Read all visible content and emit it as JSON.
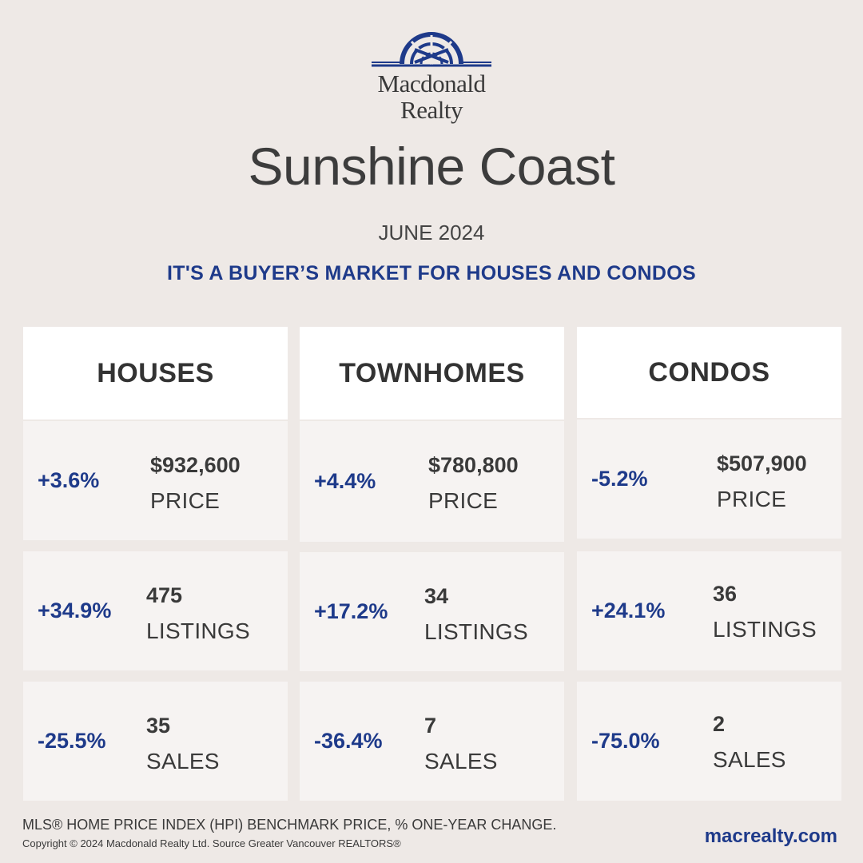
{
  "brand": {
    "line1": "Macdonald",
    "line2": "Realty",
    "color": "#1E3A8A"
  },
  "title": "Sunshine Coast",
  "subtitle": "JUNE 2024",
  "tagline": "IT'S A BUYER’S MARKET FOR HOUSES AND CONDOS",
  "columns": [
    {
      "header": "HOUSES",
      "price": {
        "change": "+3.6%",
        "value": "$932,600",
        "label": "PRICE"
      },
      "listings": {
        "change": "+34.9%",
        "value": "475",
        "label": "LISTINGS"
      },
      "sales": {
        "change": "-25.5%",
        "value": "35",
        "label": "SALES"
      }
    },
    {
      "header": "TOWNHOMES",
      "price": {
        "change": "+4.4%",
        "value": "$780,800",
        "label": "PRICE"
      },
      "listings": {
        "change": "+17.2%",
        "value": "34",
        "label": "LISTINGS"
      },
      "sales": {
        "change": "-36.4%",
        "value": "7",
        "label": "SALES"
      }
    },
    {
      "header": "CONDOS",
      "price": {
        "change": "-5.2%",
        "value": "$507,900",
        "label": "PRICE"
      },
      "listings": {
        "change": "+24.1%",
        "value": "36",
        "label": "LISTINGS"
      },
      "sales": {
        "change": "-75.0%",
        "value": "2",
        "label": "SALES"
      }
    }
  ],
  "footnote": "MLS® HOME PRICE INDEX (HPI) BENCHMARK PRICE, % ONE-YEAR CHANGE.",
  "copyright": "Copyright © 2024 Macdonald Realty Ltd. Source Greater Vancouver REALTORS®",
  "website": "macrealty.com"
}
